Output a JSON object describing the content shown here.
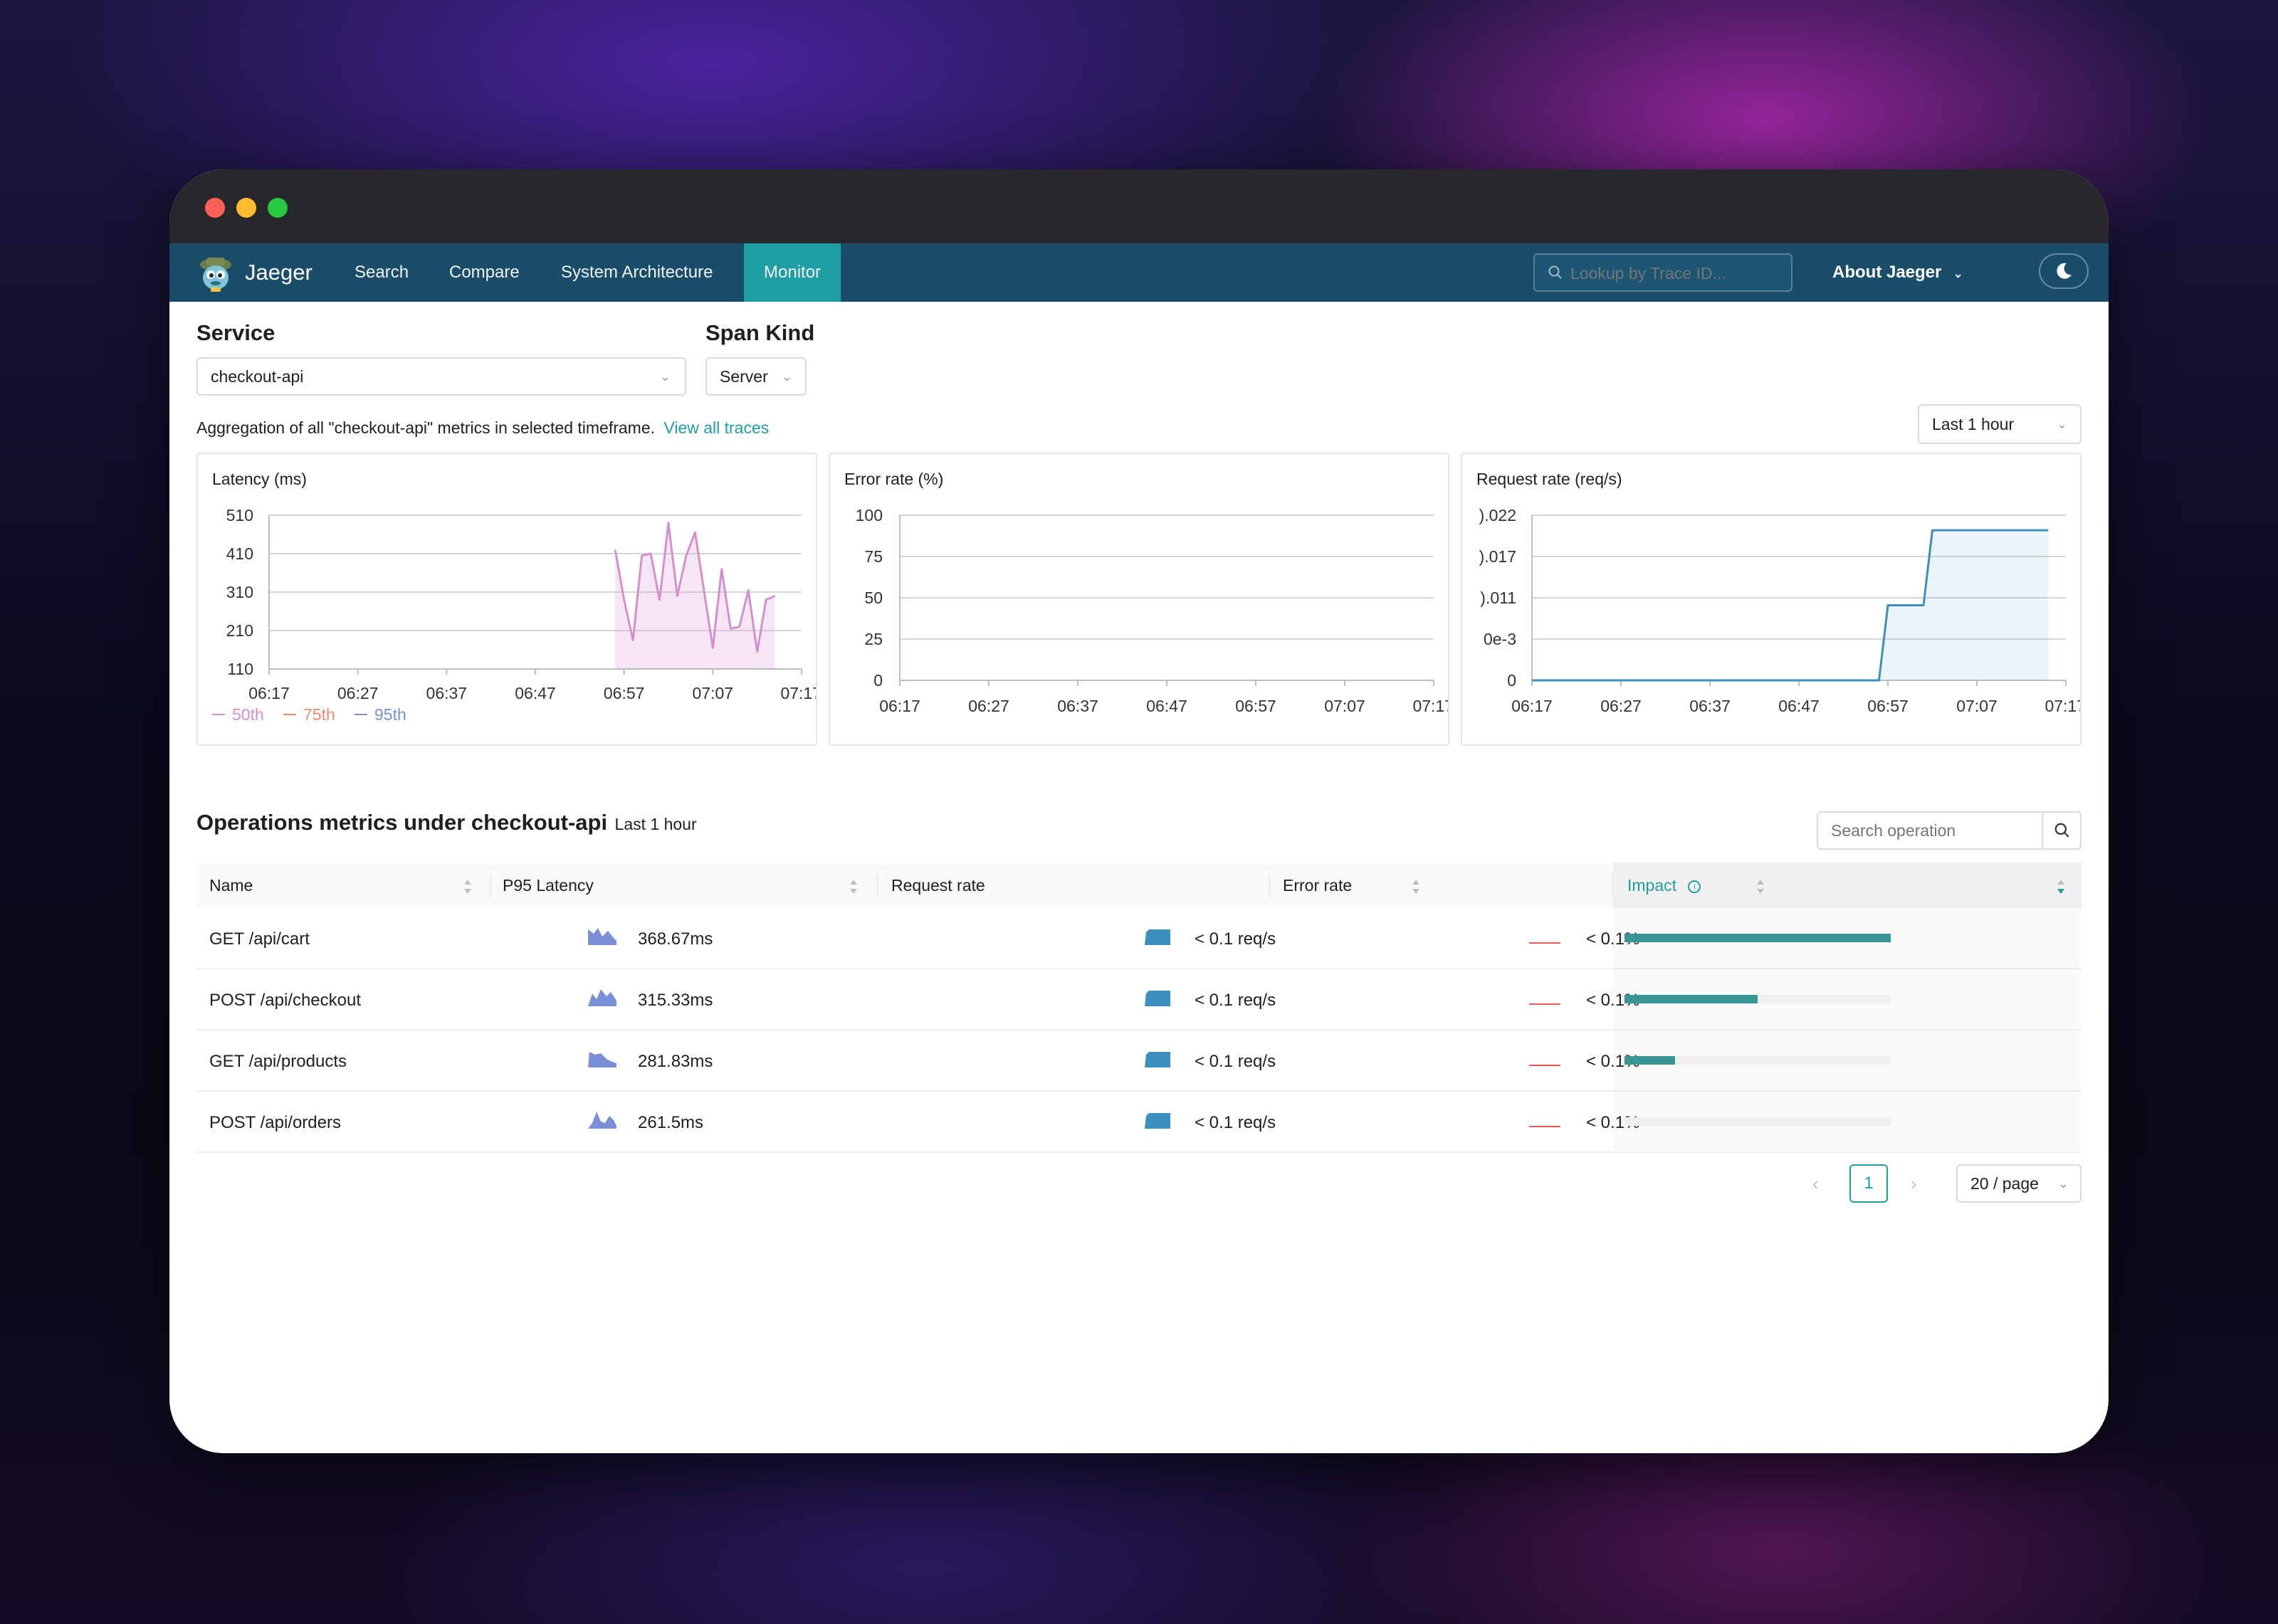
{
  "colors": {
    "navbar": "#1a4d6a",
    "nav_active": "#1f9ea3",
    "link": "#1f9ea3",
    "p50": "#d48fcc",
    "p75": "#f08a6a",
    "p95": "#7b8fd8",
    "request_rate": "#3c8fbf",
    "impact_bar": "#3a9595",
    "error_line": "#e85a5a"
  },
  "navbar": {
    "brand": "Jaeger",
    "items": [
      "Search",
      "Compare",
      "System Architecture",
      "Monitor"
    ],
    "active": "Monitor",
    "search_placeholder": "Lookup by Trace ID...",
    "about": "About Jaeger",
    "theme_icon": "moon-icon"
  },
  "filters": {
    "service_label": "Service",
    "service_value": "checkout-api",
    "span_kind_label": "Span Kind",
    "span_kind_value": "Server"
  },
  "summary": {
    "text": "Aggregation of all \"checkout-api\" metrics in selected timeframe.",
    "link": "View all traces",
    "timeframe": "Last 1 hour"
  },
  "chart_data": [
    {
      "type": "area",
      "title": "Latency (ms)",
      "x_ticks": [
        "06:17",
        "06:27",
        "06:37",
        "06:47",
        "06:57",
        "07:07",
        "07:17"
      ],
      "y_ticks": [
        "510",
        "410",
        "310",
        "210",
        "110"
      ],
      "ylim": [
        110,
        510
      ],
      "legend": [
        "50th",
        "75th",
        "95th"
      ],
      "legend_position": "bottom-left",
      "series": [
        {
          "name": "50th",
          "x": [
            "06:56",
            "06:57",
            "06:58",
            "06:59",
            "07:00",
            "07:01",
            "07:02",
            "07:03",
            "07:04",
            "07:05",
            "07:06",
            "07:07",
            "07:08",
            "07:09",
            "07:10",
            "07:11",
            "07:12",
            "07:13",
            "07:14"
          ],
          "values": [
            420,
            290,
            185,
            405,
            410,
            290,
            490,
            300,
            405,
            465,
            315,
            165,
            370,
            215,
            220,
            315,
            155,
            290,
            300
          ]
        }
      ]
    },
    {
      "type": "line",
      "title": "Error rate (%)",
      "x_ticks": [
        "06:17",
        "06:27",
        "06:37",
        "06:47",
        "06:57",
        "07:07",
        "07:17"
      ],
      "y_ticks": [
        "100",
        "75",
        "50",
        "25",
        "0"
      ],
      "ylim": [
        0,
        100
      ],
      "series": []
    },
    {
      "type": "area",
      "title": "Request rate (req/s)",
      "x_ticks": [
        "06:17",
        "06:27",
        "06:37",
        "06:47",
        "06:57",
        "07:07",
        "07:17"
      ],
      "y_ticks": [
        ").022",
        ").017",
        ").011",
        "0e-3",
        "0"
      ],
      "ylim": [
        0,
        0.022
      ],
      "series": [
        {
          "x": [
            "06:17",
            "06:56",
            "06:57",
            "07:01",
            "07:02",
            "07:15"
          ],
          "values": [
            0,
            0,
            0.01,
            0.01,
            0.02,
            0.02
          ]
        }
      ]
    }
  ],
  "operations": {
    "title": "Operations metrics under checkout-api",
    "subtitle": "Last 1 hour",
    "search_placeholder": "Search operation",
    "columns": [
      "Name",
      "P95 Latency",
      "Request rate",
      "Error rate",
      "Impact"
    ],
    "rows": [
      {
        "name": "GET /api/cart",
        "latency": "368.67ms",
        "request_rate": "< 0.1 req/s",
        "error_rate": "< 0.1%",
        "impact": 1.0
      },
      {
        "name": "POST /api/checkout",
        "latency": "315.33ms",
        "request_rate": "< 0.1 req/s",
        "error_rate": "< 0.1%",
        "impact": 0.5
      },
      {
        "name": "GET /api/products",
        "latency": "281.83ms",
        "request_rate": "< 0.1 req/s",
        "error_rate": "< 0.1%",
        "impact": 0.19
      },
      {
        "name": "POST /api/orders",
        "latency": "261.5ms",
        "request_rate": "< 0.1 req/s",
        "error_rate": "< 0.1%",
        "impact": 0.0
      }
    ]
  },
  "pagination": {
    "current_page": "1",
    "page_size": "20 / page"
  }
}
